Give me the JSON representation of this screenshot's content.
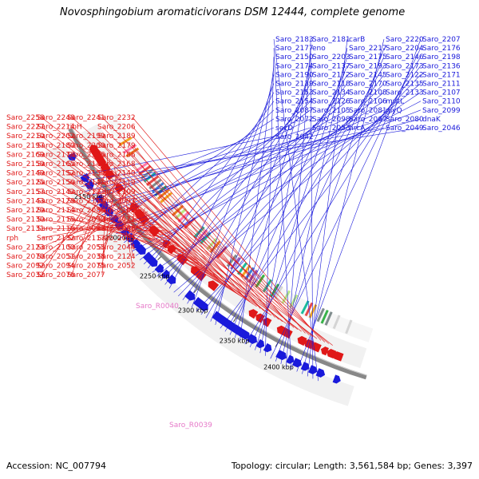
{
  "title": "Novosphingobium aromaticivorans DSM 12444, complete genome",
  "accession": "Accession: NC_007794",
  "summary": "Topology: circular; Length: 3,561,584 bp; Genes: 3,397",
  "colors": {
    "forward": "#1a1adb",
    "reverse": "#e01818",
    "rna": "#e678c8",
    "backbone": "#888888"
  },
  "ticks": [
    "2400 kbp",
    "2350 kbp",
    "2300 kbp",
    "2250 kbp",
    "2200 kbp",
    "2150 kbp"
  ],
  "forward_labels": [
    "Saro_2183",
    "Saro_2181",
    "carB",
    "Saro_2220",
    "Saro_2207",
    "Saro_2177",
    "eno",
    "Saro_2217",
    "Saro_2204",
    "Saro_2176",
    "Saro_2150",
    "Saro_2203",
    "Saro_2175",
    "Saro_2146",
    "Saro_2198",
    "Saro_2174",
    "Saro_2137",
    "Saro_2193",
    "Saro_2173",
    "Saro_2136",
    "Saro_2190",
    "Saro_2172",
    "Saro_2145",
    "Saro_2122",
    "Saro_2171",
    "Saro_2139",
    "Saro_2118",
    "Saro_2170",
    "Saro_2135",
    "Saro_2111",
    "Saro_2153",
    "Saro_2134",
    "Saro_2108",
    "Saro_2133",
    "Saro_2107",
    "Saro_2154",
    "Saro_2126",
    "Saro_2106",
    "mutL",
    "Saro_2110",
    "Saro_2087",
    "Saro_2105",
    "Saro_2081",
    "glyQ",
    "Saro_2099",
    "Saro_2072",
    "Saro_2098",
    "Saro_2067",
    "Saro_2080",
    "dnaK",
    "secD",
    "Saro_2053",
    "hrcA",
    "Saro_2049",
    "Saro_2046",
    "Saro_2042"
  ],
  "reverse_labels": [
    "Saro_2258",
    "Saro_2248",
    "Saro_2241",
    "Saro_2232",
    "Saro_2227",
    "Saro_2214",
    "ribH",
    "Saro_2206",
    "Saro_2210",
    "Saro_2202",
    "Saro_2199",
    "Saro_2189",
    "Saro_2197",
    "Saro_2180",
    "Saro_2200",
    "Saro_2179",
    "Saro_2169",
    "Saro_2178",
    "Saro_2166",
    "Saro_2186",
    "Saro_2159",
    "Saro_2165",
    "Saro_2144",
    "Saro_2168",
    "Saro_2149",
    "Saro_2152",
    "Saro_2155",
    "Saro_2140",
    "Saro_2125",
    "Saro_2156",
    "Saro_2141",
    "Saro_2119",
    "Saro_2157",
    "Saro_2142",
    "Saro_2121",
    "Saro_2109",
    "Saro_2143",
    "Saro_2128",
    "Saro_2113",
    "Saro_2097",
    "Saro_2129",
    "Saro_2114",
    "Saro_2086",
    "Saro_2102",
    "Saro_2130",
    "Saro_2115",
    "Saro_2090",
    "Saro_2071",
    "Saro_2131",
    "Saro_2116",
    "Saro_2093",
    "Saro_2068",
    "rph",
    "Saro_2132",
    "Saro_2117",
    "Saro_2085",
    "Saro_2123",
    "Saro_2100",
    "Saro_2055",
    "Saro_2044",
    "Saro_2070",
    "Saro_2051",
    "Saro_2038",
    "Saro_2124",
    "Saro_2092",
    "Saro_2094",
    "Saro_2075",
    "Saro_2052",
    "Saro_2032",
    "Saro_2076",
    "Saro_2077"
  ],
  "rna_labels": [
    "Saro_R0040",
    "Saro_R0039"
  ]
}
